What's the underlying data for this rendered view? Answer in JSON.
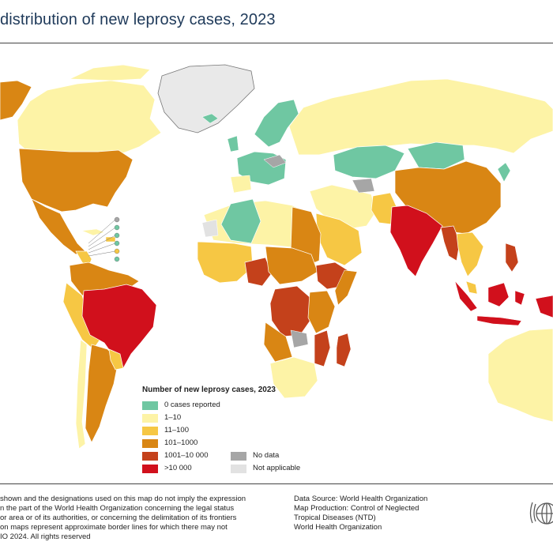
{
  "map": {
    "title": "distribution of new leprosy cases, 2023",
    "legend": {
      "title": "Number of new leprosy cases, 2023",
      "items": [
        {
          "label": "0 cases reported",
          "color": "#6fc7a2"
        },
        {
          "label": "1–10",
          "color": "#fdf3a6"
        },
        {
          "label": "11–100",
          "color": "#f6c744"
        },
        {
          "label": "101–1000",
          "color": "#d98614"
        },
        {
          "label": "1001–10 000",
          "color": "#c4411b"
        },
        {
          "label": ">10 000",
          "color": "#d1101c"
        },
        {
          "label": "No data",
          "color": "#a6a6a6"
        },
        {
          "label": "Not applicable",
          "color": "#e2e2e2"
        }
      ]
    },
    "disclaimer": [
      "shown and the designations used on this map do not imply the expression",
      "n the part of the World Health Organization concerning the legal status",
      "or area or of its authorities, or concerning the delimitation of its frontiers",
      "on maps represent approximate border lines for which there may not",
      "IO 2024. All rights reserved"
    ],
    "credits": [
      "Data Source: World Health Organization",
      "Map Production: Control of Neglected",
      "Tropical Diseases (NTD)",
      "World Health Organization"
    ],
    "colors": {
      "border": "#ffffff",
      "water": "#ffffff",
      "emblem": "#5a5a5a"
    }
  }
}
